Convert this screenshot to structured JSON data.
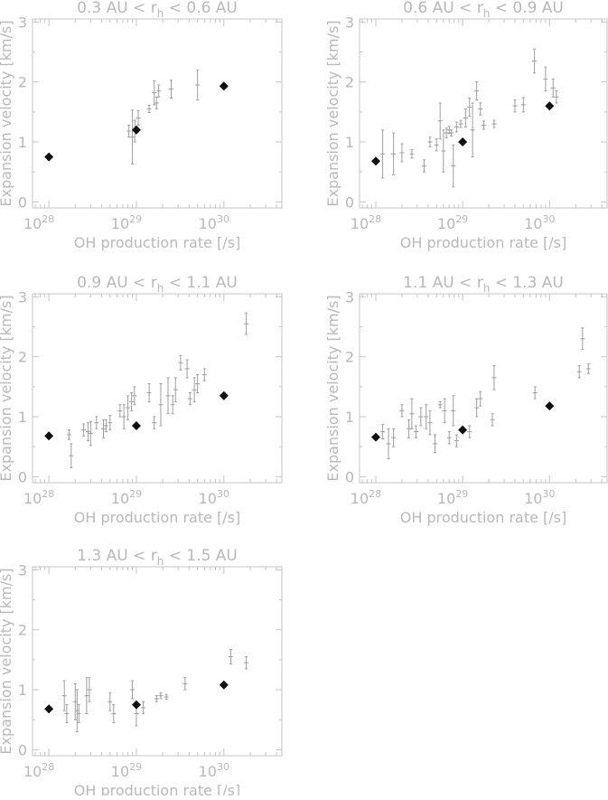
{
  "figure": {
    "panels": [
      {
        "title": {
          "pre": "0.3 AU < r",
          "sub": "h",
          "post": " < 0.6 AU"
        },
        "xlabel": "OH production rate [/s]",
        "ylabel": "Expansion velocity [km/s]",
        "xticks": [
          {
            "base": "10",
            "exp": "28"
          },
          {
            "base": "10",
            "exp": "29"
          },
          {
            "base": "10",
            "exp": "30"
          }
        ],
        "yticks": [
          "0",
          "1",
          "2",
          "3"
        ]
      },
      {
        "title": {
          "pre": "0.6 AU < r",
          "sub": "h",
          "post": " < 0.9 AU"
        },
        "xlabel": "OH production rate [/s]",
        "ylabel": "Expansion velocity [km/s]",
        "xticks": [
          {
            "base": "10",
            "exp": "28"
          },
          {
            "base": "10",
            "exp": "29"
          },
          {
            "base": "10",
            "exp": "30"
          }
        ],
        "yticks": [
          "0",
          "1",
          "2",
          "3"
        ]
      },
      {
        "title": {
          "pre": "0.9 AU < r",
          "sub": "h",
          "post": " < 1.1 AU"
        },
        "xlabel": "OH production rate [/s]",
        "ylabel": "Expansion velocity [km/s]",
        "xticks": [
          {
            "base": "10",
            "exp": "28"
          },
          {
            "base": "10",
            "exp": "29"
          },
          {
            "base": "10",
            "exp": "30"
          }
        ],
        "yticks": [
          "0",
          "1",
          "2",
          "3"
        ]
      },
      {
        "title": {
          "pre": "1.1 AU < r",
          "sub": "h",
          "post": " < 1.3 AU"
        },
        "xlabel": "OH production rate [/s]",
        "ylabel": "Expansion velocity [km/s]",
        "xticks": [
          {
            "base": "10",
            "exp": "28"
          },
          {
            "base": "10",
            "exp": "29"
          },
          {
            "base": "10",
            "exp": "30"
          }
        ],
        "yticks": [
          "0",
          "1",
          "2",
          "3"
        ]
      },
      {
        "title": {
          "pre": "1.3 AU < r",
          "sub": "h",
          "post": " < 1.5 AU"
        },
        "xlabel": "OH production rate [/s]",
        "ylabel": "Expansion velocity [km/s]",
        "xticks": [
          {
            "base": "10",
            "exp": "28"
          },
          {
            "base": "10",
            "exp": "29"
          },
          {
            "base": "10",
            "exp": "30"
          }
        ],
        "yticks": [
          "0",
          "1",
          "2",
          "3"
        ]
      }
    ]
  },
  "chart_data": [
    {
      "type": "scatter",
      "title": "0.3 AU < r_h < 0.6 AU",
      "xlabel": "OH production rate [/s]",
      "ylabel": "Expansion velocity [km/s]",
      "xscale": "log",
      "xlim": [
        6.5e+27,
        4.6e+30
      ],
      "ylim": [
        -0.1,
        3.05
      ],
      "series": [
        {
          "marker": "error bars",
          "color": "#9e9e9e",
          "points": [
            {
              "x": 8.2e+28,
              "y": 1.18,
              "yerr": 0.1
            },
            {
              "x": 9e+28,
              "y": 1.08,
              "yerr": 0.45
            },
            {
              "x": 9.6e+28,
              "y": 1.18,
              "yerr": 0.18
            },
            {
              "x": 1.05e+29,
              "y": 1.4,
              "yerr": 0.12
            },
            {
              "x": 1.4e+29,
              "y": 1.55,
              "yerr": 0.06
            },
            {
              "x": 1.6e+29,
              "y": 1.82,
              "yerr": 0.2
            },
            {
              "x": 1.7e+29,
              "y": 1.65,
              "yerr": 0.1
            },
            {
              "x": 1.8e+29,
              "y": 1.85,
              "yerr": 0.1
            },
            {
              "x": 2.5e+29,
              "y": 1.88,
              "yerr": 0.15
            },
            {
              "x": 5e+29,
              "y": 1.95,
              "yerr": 0.25
            }
          ]
        },
        {
          "marker": "filled diamond",
          "color": "#111111",
          "points": [
            {
              "x": 1e+28,
              "y": 0.75
            },
            {
              "x": 1e+29,
              "y": 1.2
            },
            {
              "x": 1e+30,
              "y": 1.93
            }
          ]
        }
      ]
    },
    {
      "type": "scatter",
      "title": "0.6 AU < r_h < 0.9 AU",
      "xlabel": "OH production rate [/s]",
      "ylabel": "Expansion velocity [km/s]",
      "xscale": "log",
      "xlim": [
        6.5e+27,
        4.6e+30
      ],
      "ylim": [
        -0.1,
        3.05
      ],
      "series": [
        {
          "marker": "error bars",
          "color": "#9e9e9e",
          "points": [
            {
              "x": 1.2e+28,
              "y": 0.8,
              "yerr": 0.4
            },
            {
              "x": 1.6e+28,
              "y": 0.8,
              "yerr": 0.35
            },
            {
              "x": 2e+28,
              "y": 0.82,
              "yerr": 0.15
            },
            {
              "x": 2.6e+28,
              "y": 0.8,
              "yerr": 0.07
            },
            {
              "x": 3.6e+28,
              "y": 0.6,
              "yerr": 0.1
            },
            {
              "x": 4.2e+28,
              "y": 1.0,
              "yerr": 0.08
            },
            {
              "x": 5e+28,
              "y": 0.95,
              "yerr": 0.1
            },
            {
              "x": 5.5e+28,
              "y": 1.35,
              "yerr": 0.3
            },
            {
              "x": 6e+28,
              "y": 0.85,
              "yerr": 0.35
            },
            {
              "x": 6.5e+28,
              "y": 1.15,
              "yerr": 0.08
            },
            {
              "x": 7e+28,
              "y": 1.2,
              "yerr": 0.06
            },
            {
              "x": 7.4e+28,
              "y": 1.15,
              "yerr": 0.05
            },
            {
              "x": 7.8e+28,
              "y": 0.6,
              "yerr": 0.35
            },
            {
              "x": 8.5e+28,
              "y": 1.25,
              "yerr": 0.08
            },
            {
              "x": 9.5e+28,
              "y": 1.3,
              "yerr": 0.06
            },
            {
              "x": 1.08e+29,
              "y": 1.4,
              "yerr": 0.15
            },
            {
              "x": 1.2e+29,
              "y": 1.58,
              "yerr": 0.15
            },
            {
              "x": 1.3e+29,
              "y": 1.2,
              "yerr": 0.45
            },
            {
              "x": 1.45e+29,
              "y": 1.85,
              "yerr": 0.15
            },
            {
              "x": 1.6e+29,
              "y": 1.55,
              "yerr": 0.1
            },
            {
              "x": 1.75e+29,
              "y": 1.28,
              "yerr": 0.07
            },
            {
              "x": 2.3e+29,
              "y": 1.3,
              "yerr": 0.06
            },
            {
              "x": 4e+29,
              "y": 1.6,
              "yerr": 0.1
            },
            {
              "x": 5e+29,
              "y": 1.62,
              "yerr": 0.12
            },
            {
              "x": 6.7e+29,
              "y": 2.35,
              "yerr": 0.2
            },
            {
              "x": 9e+29,
              "y": 2.05,
              "yerr": 0.2
            },
            {
              "x": 1.1e+30,
              "y": 1.9,
              "yerr": 0.15
            },
            {
              "x": 1.2e+30,
              "y": 1.75,
              "yerr": 0.1
            }
          ]
        },
        {
          "marker": "filled diamond",
          "color": "#111111",
          "points": [
            {
              "x": 1e+28,
              "y": 0.68
            },
            {
              "x": 1e+29,
              "y": 1.0
            },
            {
              "x": 1e+30,
              "y": 1.6
            }
          ]
        }
      ]
    },
    {
      "type": "scatter",
      "title": "0.9 AU < r_h < 1.1 AU",
      "xlabel": "OH production rate [/s]",
      "ylabel": "Expansion velocity [km/s]",
      "xscale": "log",
      "xlim": [
        6.5e+27,
        4.6e+30
      ],
      "ylim": [
        -0.1,
        3.05
      ],
      "series": [
        {
          "marker": "error bars",
          "color": "#9e9e9e",
          "points": [
            {
              "x": 1.7e+28,
              "y": 0.7,
              "yerr": 0.08
            },
            {
              "x": 1.8e+28,
              "y": 0.35,
              "yerr": 0.2
            },
            {
              "x": 2.5e+28,
              "y": 0.78,
              "yerr": 0.1
            },
            {
              "x": 2.8e+28,
              "y": 0.75,
              "yerr": 0.15
            },
            {
              "x": 3e+28,
              "y": 0.72,
              "yerr": 0.2
            },
            {
              "x": 3.5e+28,
              "y": 0.9,
              "yerr": 0.1
            },
            {
              "x": 4.2e+28,
              "y": 0.8,
              "yerr": 0.15
            },
            {
              "x": 4.5e+28,
              "y": 0.85,
              "yerr": 0.1
            },
            {
              "x": 5e+28,
              "y": 0.9,
              "yerr": 0.12
            },
            {
              "x": 6.5e+28,
              "y": 1.1,
              "yerr": 0.1
            },
            {
              "x": 7.2e+28,
              "y": 1.0,
              "yerr": 0.2
            },
            {
              "x": 8e+28,
              "y": 1.15,
              "yerr": 0.2
            },
            {
              "x": 8.8e+28,
              "y": 1.25,
              "yerr": 0.15
            },
            {
              "x": 9.5e+28,
              "y": 1.35,
              "yerr": 0.15
            },
            {
              "x": 1.4e+29,
              "y": 1.4,
              "yerr": 0.15
            },
            {
              "x": 1.6e+29,
              "y": 0.9,
              "yerr": 0.1
            },
            {
              "x": 1.9e+29,
              "y": 1.2,
              "yerr": 0.35
            },
            {
              "x": 2.3e+29,
              "y": 1.35,
              "yerr": 0.3
            },
            {
              "x": 2.6e+29,
              "y": 1.2,
              "yerr": 0.15
            },
            {
              "x": 2.8e+29,
              "y": 1.45,
              "yerr": 0.2
            },
            {
              "x": 3.2e+29,
              "y": 1.9,
              "yerr": 0.12
            },
            {
              "x": 3.8e+29,
              "y": 1.8,
              "yerr": 0.15
            },
            {
              "x": 4.1e+29,
              "y": 1.3,
              "yerr": 0.1
            },
            {
              "x": 4.6e+29,
              "y": 1.45,
              "yerr": 0.2
            },
            {
              "x": 5e+29,
              "y": 1.55,
              "yerr": 0.15
            },
            {
              "x": 6e+29,
              "y": 1.7,
              "yerr": 0.1
            },
            {
              "x": 1.8e+30,
              "y": 2.55,
              "yerr": 0.18
            }
          ]
        },
        {
          "marker": "filled diamond",
          "color": "#111111",
          "points": [
            {
              "x": 1e+28,
              "y": 0.68
            },
            {
              "x": 1e+29,
              "y": 0.85
            },
            {
              "x": 1e+30,
              "y": 1.35
            }
          ]
        }
      ]
    },
    {
      "type": "scatter",
      "title": "1.1 AU < r_h < 1.3 AU",
      "xlabel": "OH production rate [/s]",
      "ylabel": "Expansion velocity [km/s]",
      "xscale": "log",
      "xlim": [
        6.5e+27,
        4.6e+30
      ],
      "ylim": [
        -0.1,
        3.05
      ],
      "series": [
        {
          "marker": "error bars",
          "color": "#9e9e9e",
          "points": [
            {
              "x": 1.2e+28,
              "y": 0.75,
              "yerr": 0.12
            },
            {
              "x": 1.4e+28,
              "y": 0.55,
              "yerr": 0.25
            },
            {
              "x": 1.6e+28,
              "y": 0.65,
              "yerr": 0.15
            },
            {
              "x": 2e+28,
              "y": 1.1,
              "yerr": 0.1
            },
            {
              "x": 2.4e+28,
              "y": 0.8,
              "yerr": 0.15
            },
            {
              "x": 2.6e+28,
              "y": 1.05,
              "yerr": 0.25
            },
            {
              "x": 2.9e+28,
              "y": 0.75,
              "yerr": 0.1
            },
            {
              "x": 3.3e+28,
              "y": 1.0,
              "yerr": 0.15
            },
            {
              "x": 3.8e+28,
              "y": 1.0,
              "yerr": 0.2
            },
            {
              "x": 4.2e+28,
              "y": 0.9,
              "yerr": 0.2
            },
            {
              "x": 4.8e+28,
              "y": 0.55,
              "yerr": 0.15
            },
            {
              "x": 5.5e+28,
              "y": 1.2,
              "yerr": 0.05
            },
            {
              "x": 6.2e+28,
              "y": 1.1,
              "yerr": 0.2
            },
            {
              "x": 7e+28,
              "y": 0.65,
              "yerr": 0.1
            },
            {
              "x": 7.8e+28,
              "y": 1.1,
              "yerr": 0.25
            },
            {
              "x": 8.5e+28,
              "y": 0.6,
              "yerr": 0.1
            },
            {
              "x": 1.2e+29,
              "y": 0.75,
              "yerr": 0.1
            },
            {
              "x": 1.45e+29,
              "y": 1.15,
              "yerr": 0.15
            },
            {
              "x": 1.6e+29,
              "y": 1.3,
              "yerr": 0.12
            },
            {
              "x": 2.2e+29,
              "y": 0.95,
              "yerr": 0.1
            },
            {
              "x": 2.3e+29,
              "y": 1.65,
              "yerr": 0.2
            },
            {
              "x": 6.8e+29,
              "y": 1.4,
              "yerr": 0.1
            },
            {
              "x": 2.2e+30,
              "y": 1.75,
              "yerr": 0.1
            },
            {
              "x": 2.4e+30,
              "y": 2.3,
              "yerr": 0.18
            },
            {
              "x": 2.8e+30,
              "y": 1.8,
              "yerr": 0.08
            }
          ]
        },
        {
          "marker": "filled diamond",
          "color": "#111111",
          "points": [
            {
              "x": 1e+28,
              "y": 0.66
            },
            {
              "x": 1e+29,
              "y": 0.78
            },
            {
              "x": 1e+30,
              "y": 1.18
            }
          ]
        }
      ]
    },
    {
      "type": "scatter",
      "title": "1.3 AU < r_h < 1.5 AU",
      "xlabel": "OH production rate [/s]",
      "ylabel": "Expansion velocity [km/s]",
      "xscale": "log",
      "xlim": [
        6.5e+27,
        4.6e+30
      ],
      "ylim": [
        -0.1,
        3.05
      ],
      "series": [
        {
          "marker": "error bars",
          "color": "#9e9e9e",
          "points": [
            {
              "x": 1.5e+28,
              "y": 0.9,
              "yerr": 0.25
            },
            {
              "x": 1.6e+28,
              "y": 0.6,
              "yerr": 0.15
            },
            {
              "x": 2e+28,
              "y": 0.8,
              "yerr": 0.3
            },
            {
              "x": 2.1e+28,
              "y": 0.65,
              "yerr": 0.35
            },
            {
              "x": 2.2e+28,
              "y": 0.6,
              "yerr": 0.15
            },
            {
              "x": 2.7e+28,
              "y": 0.9,
              "yerr": 0.3
            },
            {
              "x": 2.9e+28,
              "y": 1.0,
              "yerr": 0.2
            },
            {
              "x": 5e+28,
              "y": 0.8,
              "yerr": 0.15
            },
            {
              "x": 5.5e+28,
              "y": 0.6,
              "yerr": 0.15
            },
            {
              "x": 9e+28,
              "y": 1.0,
              "yerr": 0.15
            },
            {
              "x": 1e+29,
              "y": 0.6,
              "yerr": 0.2
            },
            {
              "x": 1.2e+29,
              "y": 0.7,
              "yerr": 0.1
            },
            {
              "x": 1.7e+29,
              "y": 0.85,
              "yerr": 0.05
            },
            {
              "x": 1.9e+29,
              "y": 0.9,
              "yerr": 0.05
            },
            {
              "x": 2.2e+29,
              "y": 0.88,
              "yerr": 0.04
            },
            {
              "x": 3.6e+29,
              "y": 1.1,
              "yerr": 0.1
            },
            {
              "x": 1.2e+30,
              "y": 1.55,
              "yerr": 0.12
            },
            {
              "x": 1.8e+30,
              "y": 1.45,
              "yerr": 0.1
            }
          ]
        },
        {
          "marker": "filled diamond",
          "color": "#111111",
          "points": [
            {
              "x": 1e+28,
              "y": 0.68
            },
            {
              "x": 1e+29,
              "y": 0.75
            },
            {
              "x": 1e+30,
              "y": 1.08
            }
          ]
        }
      ]
    }
  ]
}
